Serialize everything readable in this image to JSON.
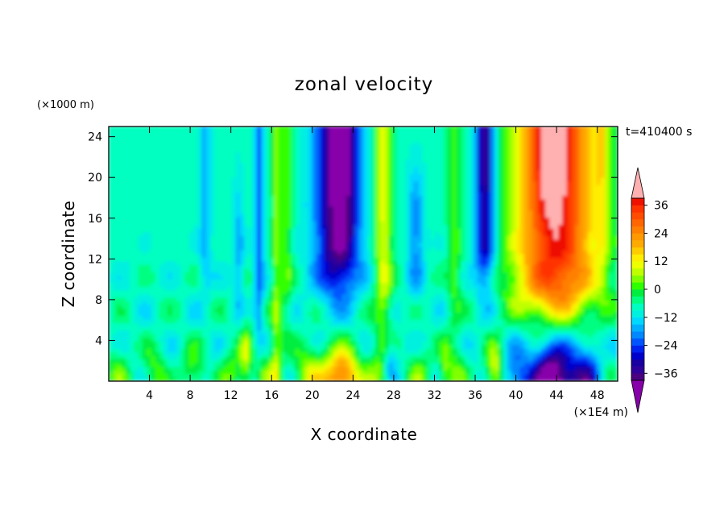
{
  "chart_data": {
    "type": "heatmap",
    "title": "zonal velocity",
    "xlabel": "X coordinate",
    "ylabel": "Z coordinate",
    "x_unit": "(×1E4 m)",
    "y_unit": "(×1000 m)",
    "time_label": "t=410400 s",
    "xlim": [
      0,
      50
    ],
    "ylim": [
      0,
      25
    ],
    "x_ticks": [
      4,
      8,
      12,
      16,
      20,
      24,
      28,
      32,
      36,
      40,
      44,
      48
    ],
    "y_ticks": [
      4,
      8,
      12,
      16,
      20,
      24
    ],
    "colorbar": {
      "levels": [
        -42,
        -39,
        -36,
        -33,
        -30,
        -27,
        -24,
        -21,
        -18,
        -15,
        -12,
        -9,
        -6,
        -3,
        0,
        3,
        6,
        9,
        12,
        15,
        18,
        21,
        24,
        27,
        30,
        33,
        36,
        39,
        42
      ],
      "tick_values": [
        36,
        24,
        12,
        0,
        -12,
        -24,
        -36
      ],
      "tick_labels": [
        "36",
        "24",
        "12",
        "0",
        "−12",
        "−24",
        "−36"
      ],
      "colors": [
        "#8800aa",
        "#4b0082",
        "#30009a",
        "#1a00a0",
        "#0000cc",
        "#0022ee",
        "#0055ff",
        "#0088ff",
        "#00b0ff",
        "#00d8ff",
        "#00f0e0",
        "#00ffc0",
        "#00ff80",
        "#00ee40",
        "#30ff00",
        "#80ff00",
        "#c0ff00",
        "#eeff00",
        "#ffee00",
        "#ffcc00",
        "#ffaa00",
        "#ff9900",
        "#ff8000",
        "#ff6600",
        "#ff4c00",
        "#ff3300",
        "#ee1100",
        "#ffb0b0"
      ]
    },
    "features": [
      {
        "kind": "column",
        "x": 15.2,
        "width": 0.7,
        "z_from": 5,
        "z_to": 25,
        "value": -15
      },
      {
        "kind": "column",
        "x": 23,
        "width": 2.6,
        "z_from": 8,
        "z_to": 25,
        "value": -33
      },
      {
        "kind": "column",
        "x": 22,
        "width": 3.5,
        "z_from": 14,
        "z_to": 25,
        "value": -22
      },
      {
        "kind": "column",
        "x": 26.6,
        "width": 0.8,
        "z_from": 3,
        "z_to": 25,
        "value": 15
      },
      {
        "kind": "column",
        "x": 29.8,
        "width": 0.8,
        "z_from": 9,
        "z_to": 19,
        "value": -15
      },
      {
        "kind": "column",
        "x": 37,
        "width": 1.2,
        "z_from": 10,
        "z_to": 25,
        "value": -24
      },
      {
        "kind": "column",
        "x": 44,
        "width": 4.5,
        "z_from": 6,
        "z_to": 25,
        "value": 30
      },
      {
        "kind": "column",
        "x": 43.5,
        "width": 1.6,
        "z_from": 17,
        "z_to": 25,
        "value": 40
      },
      {
        "kind": "blob",
        "x": 22.5,
        "z": 0.5,
        "value": 30
      },
      {
        "kind": "blob",
        "x": 43.5,
        "z": 0.5,
        "value": -40
      },
      {
        "kind": "blob",
        "x": 27.5,
        "z": 1.5,
        "value": -18
      }
    ]
  }
}
